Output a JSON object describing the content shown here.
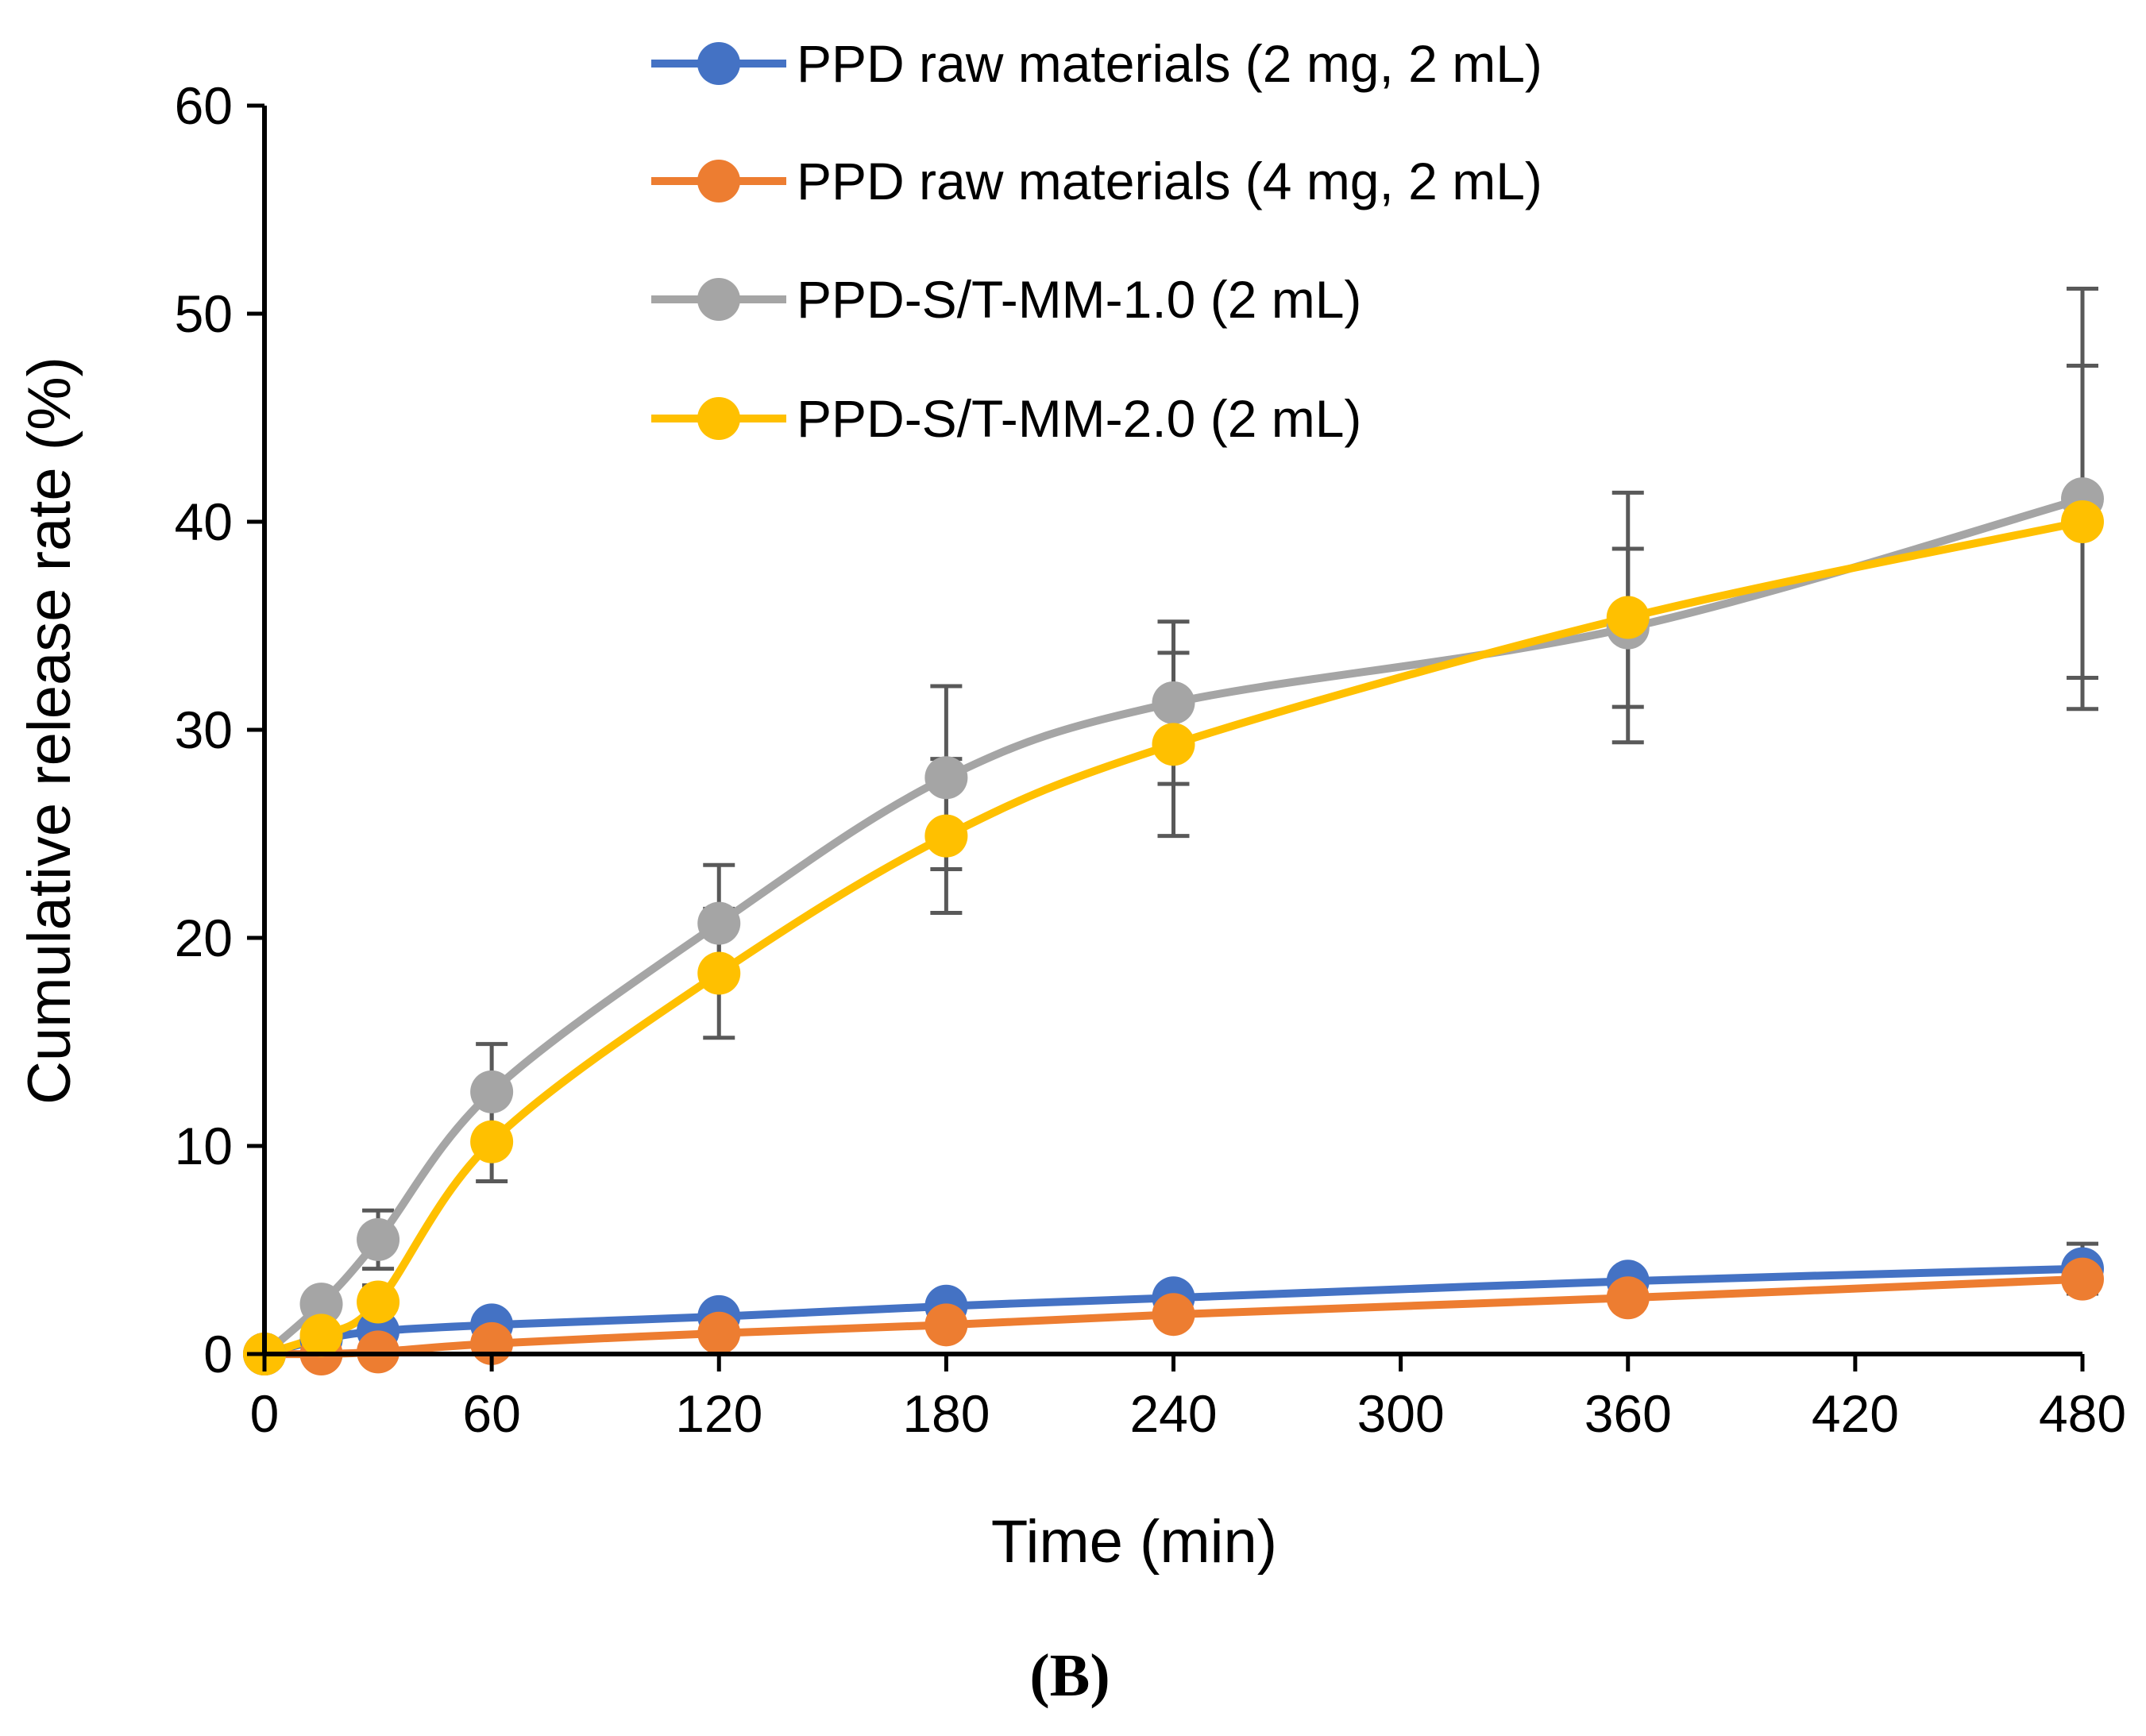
{
  "panel_label": "(B)",
  "chart_data": {
    "type": "line",
    "xlabel": "Time (min)",
    "ylabel": "Cumulative release rate (%)",
    "xlim": [
      0,
      480
    ],
    "ylim": [
      0,
      60
    ],
    "xticks": [
      0,
      60,
      120,
      180,
      240,
      300,
      360,
      420,
      480
    ],
    "yticks": [
      0,
      10,
      20,
      30,
      40,
      50,
      60
    ],
    "grid": false,
    "legend_position": "top-center",
    "series": [
      {
        "name": "PPD raw materials (2 mg, 2 mL)",
        "color": "#4472C4",
        "x": [
          0,
          15,
          30,
          60,
          120,
          180,
          240,
          360,
          480
        ],
        "y": [
          0,
          0.7,
          1.1,
          1.4,
          1.8,
          2.3,
          2.7,
          3.5,
          4.1
        ],
        "err": [
          0,
          0,
          0,
          0.2,
          0.2,
          0.2,
          0.2,
          0.3,
          1.2
        ]
      },
      {
        "name": "PPD raw materials (4 mg, 2 mL)",
        "color": "#ED7D31",
        "x": [
          0,
          15,
          30,
          60,
          120,
          180,
          240,
          360,
          480
        ],
        "y": [
          0,
          0,
          0.1,
          0.5,
          1.0,
          1.4,
          1.9,
          2.7,
          3.6
        ],
        "err": [
          0,
          0,
          0,
          0.1,
          0.2,
          0.2,
          0.2,
          0.3,
          0.3
        ]
      },
      {
        "name": "PPD-S/T-MM-1.0 (2 mL)",
        "color": "#A5A5A5",
        "x": [
          0,
          15,
          30,
          60,
          120,
          180,
          240,
          360,
          480
        ],
        "y": [
          0,
          2.4,
          5.5,
          12.6,
          20.7,
          27.7,
          31.3,
          34.9,
          41.1
        ],
        "err": [
          0,
          0,
          1.4,
          2.3,
          2.8,
          4.4,
          3.9,
          3.8,
          10.1
        ]
      },
      {
        "name": "PPD-S/T-MM-2.0 (2 mL)",
        "color": "#FFC000",
        "x": [
          0,
          15,
          30,
          60,
          120,
          180,
          240,
          360,
          480
        ],
        "y": [
          0,
          0.9,
          2.5,
          10.2,
          18.3,
          24.9,
          29.3,
          35.4,
          40.0
        ],
        "err": [
          0,
          0,
          0.8,
          1.9,
          3.1,
          3.7,
          4.4,
          6.0,
          7.5
        ]
      }
    ]
  }
}
